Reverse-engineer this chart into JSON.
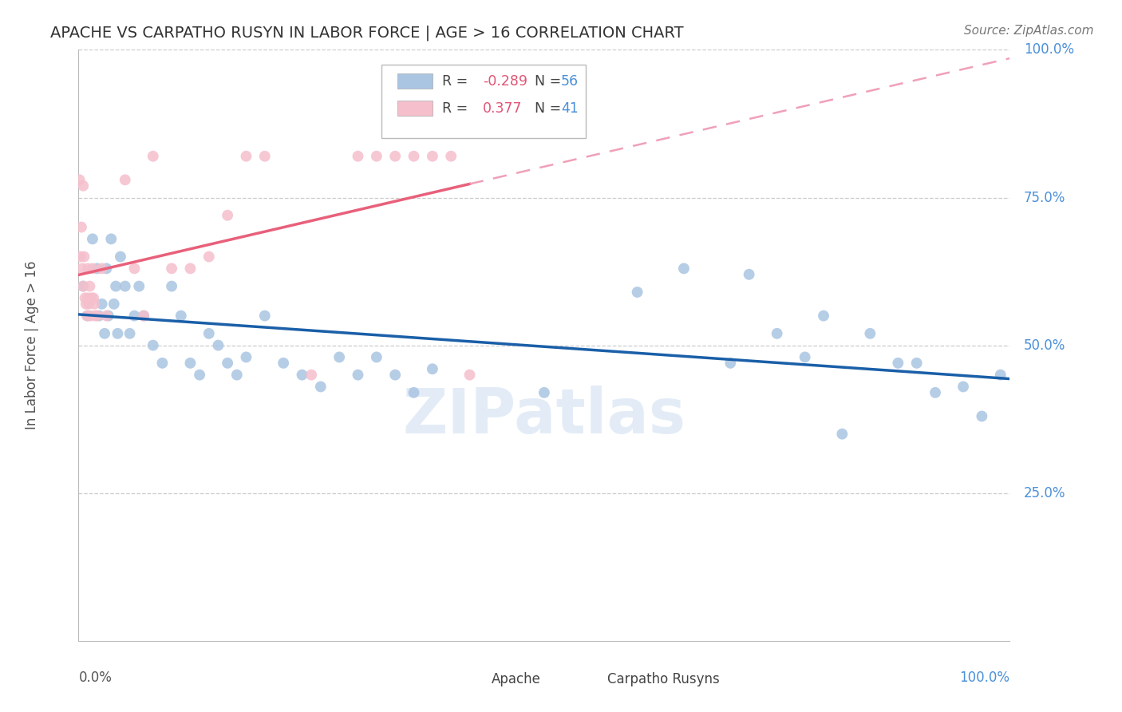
{
  "title": "APACHE VS CARPATHO RUSYN IN LABOR FORCE | AGE > 16 CORRELATION CHART",
  "source": "Source: ZipAtlas.com",
  "ylabel": "In Labor Force | Age > 16",
  "apache_R": "-0.289",
  "apache_N": "56",
  "carpatho_R": "0.377",
  "carpatho_N": "41",
  "apache_color": "#aac5e2",
  "apache_line_color": "#1a5fa8",
  "carpatho_color": "#f5bfcc",
  "carpatho_line_color": "#e8607a",
  "carpatho_dash_color": "#f0a0b8",
  "watermark": "ZIPatlas",
  "apache_x": [
    0.5,
    1.0,
    1.5,
    2.0,
    2.2,
    2.5,
    2.8,
    3.0,
    3.2,
    3.5,
    3.8,
    4.0,
    4.2,
    4.5,
    5.0,
    5.5,
    6.0,
    6.5,
    7.0,
    8.0,
    9.0,
    10.0,
    11.0,
    12.0,
    13.0,
    14.0,
    15.0,
    16.0,
    17.0,
    18.0,
    20.0,
    22.0,
    24.0,
    26.0,
    28.0,
    30.0,
    32.0,
    34.0,
    36.0,
    38.0,
    50.0,
    60.0,
    65.0,
    70.0,
    72.0,
    75.0,
    78.0,
    80.0,
    82.0,
    85.0,
    88.0,
    90.0,
    92.0,
    95.0,
    97.0,
    99.0
  ],
  "apache_y": [
    60,
    55,
    68,
    63,
    55,
    57,
    52,
    63,
    55,
    68,
    57,
    60,
    52,
    65,
    60,
    52,
    55,
    60,
    55,
    50,
    47,
    60,
    55,
    47,
    45,
    52,
    50,
    47,
    45,
    48,
    55,
    47,
    45,
    43,
    48,
    45,
    48,
    45,
    42,
    46,
    42,
    59,
    63,
    47,
    62,
    52,
    48,
    55,
    35,
    52,
    47,
    47,
    42,
    43,
    38,
    45
  ],
  "carpatho_x": [
    0.1,
    0.2,
    0.3,
    0.4,
    0.5,
    0.5,
    0.6,
    0.7,
    0.8,
    0.9,
    1.0,
    1.0,
    1.1,
    1.2,
    1.3,
    1.4,
    1.5,
    1.6,
    1.7,
    1.8,
    2.0,
    2.5,
    3.0,
    5.0,
    6.0,
    7.0,
    8.0,
    10.0,
    12.0,
    14.0,
    16.0,
    18.0,
    20.0,
    25.0,
    30.0,
    32.0,
    34.0,
    36.0,
    38.0,
    40.0,
    42.0
  ],
  "carpatho_y": [
    78,
    65,
    70,
    63,
    77,
    60,
    65,
    58,
    57,
    55,
    63,
    58,
    57,
    60,
    55,
    58,
    63,
    58,
    57,
    55,
    55,
    63,
    55,
    78,
    63,
    55,
    82,
    63,
    63,
    65,
    72,
    82,
    82,
    45,
    82,
    82,
    82,
    82,
    82,
    82,
    45
  ]
}
